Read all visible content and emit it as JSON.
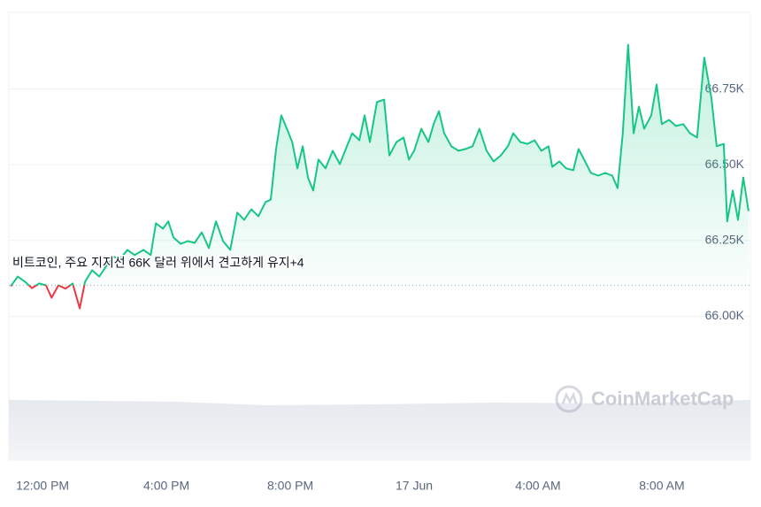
{
  "chart_data": {
    "type": "line",
    "annotation": "비트코인, 주요 지지선 66K 달러 위에서 견고하게 유지+4",
    "watermark": "CoinMarketCap",
    "baseline": 66102,
    "up_color": "#16c784",
    "down_color": "#ea3943",
    "xlim": [
      -1.09,
      22.86
    ],
    "ylim": [
      65750,
      67000
    ],
    "xticks": [
      {
        "value": 0,
        "label": "12:00 PM"
      },
      {
        "value": 4,
        "label": "4:00 PM"
      },
      {
        "value": 8,
        "label": "8:00 PM"
      },
      {
        "value": 12,
        "label": "17 Jun"
      },
      {
        "value": 16,
        "label": "4:00 AM"
      },
      {
        "value": 20,
        "label": "8:00 AM"
      }
    ],
    "yticks": [
      {
        "value": 66000,
        "label": "66.00K"
      },
      {
        "value": 66250,
        "label": "66.25K"
      },
      {
        "value": 66500,
        "label": "66.50K"
      },
      {
        "value": 66750,
        "label": "66.75K"
      }
    ],
    "grid": true,
    "x": [
      -1.03,
      -0.8,
      -0.57,
      -0.34,
      -0.11,
      0.11,
      0.29,
      0.51,
      0.74,
      0.97,
      1.2,
      1.37,
      1.6,
      1.83,
      2.06,
      2.29,
      2.51,
      2.74,
      2.97,
      3.26,
      3.49,
      3.66,
      3.89,
      4.06,
      4.23,
      4.46,
      4.69,
      4.91,
      5.14,
      5.37,
      5.6,
      5.83,
      6.06,
      6.29,
      6.51,
      6.74,
      6.97,
      7.2,
      7.37,
      7.54,
      7.71,
      7.89,
      8.06,
      8.23,
      8.4,
      8.57,
      8.74,
      8.91,
      9.14,
      9.37,
      9.6,
      9.83,
      10,
      10.23,
      10.4,
      10.57,
      10.8,
      11.03,
      11.2,
      11.43,
      11.66,
      11.83,
      12,
      12.23,
      12.46,
      12.63,
      12.8,
      12.97,
      13.2,
      13.43,
      13.66,
      13.89,
      14.11,
      14.34,
      14.57,
      14.8,
      15.03,
      15.2,
      15.43,
      15.66,
      15.89,
      16.11,
      16.34,
      16.46,
      16.69,
      16.91,
      17.14,
      17.31,
      17.49,
      17.71,
      17.94,
      18.17,
      18.4,
      18.57,
      18.74,
      18.91,
      19.09,
      19.26,
      19.43,
      19.66,
      19.83,
      20,
      20.23,
      20.46,
      20.69,
      20.91,
      21.14,
      21.37,
      21.6,
      21.77,
      22,
      22.11,
      22.29,
      22.46,
      22.63,
      22.8
    ],
    "values": [
      66099,
      66131,
      66114,
      66093,
      66108,
      66102,
      66061,
      66102,
      66091,
      66108,
      66026,
      66114,
      66152,
      66131,
      66166,
      66196,
      66190,
      66219,
      66202,
      66219,
      66202,
      66307,
      66289,
      66313,
      66260,
      66239,
      66248,
      66242,
      66277,
      66225,
      66313,
      66248,
      66219,
      66342,
      66318,
      66353,
      66330,
      66377,
      66385,
      66552,
      66663,
      66619,
      66575,
      66488,
      66561,
      66458,
      66415,
      66517,
      66488,
      66546,
      66502,
      66561,
      66604,
      66581,
      66663,
      66575,
      66707,
      66715,
      66531,
      66575,
      66590,
      66517,
      66546,
      66619,
      66575,
      66634,
      66677,
      66604,
      66561,
      66546,
      66552,
      66561,
      66619,
      66546,
      66511,
      66531,
      66561,
      66604,
      66575,
      66569,
      66581,
      66546,
      66561,
      66493,
      66511,
      66488,
      66482,
      66552,
      66517,
      66473,
      66464,
      66473,
      66464,
      66423,
      66604,
      66896,
      66604,
      66692,
      66619,
      66663,
      66765,
      66634,
      66648,
      66628,
      66634,
      66604,
      66590,
      66853,
      66721,
      66561,
      66569,
      66313,
      66415,
      66318,
      66458,
      66347
    ]
  }
}
